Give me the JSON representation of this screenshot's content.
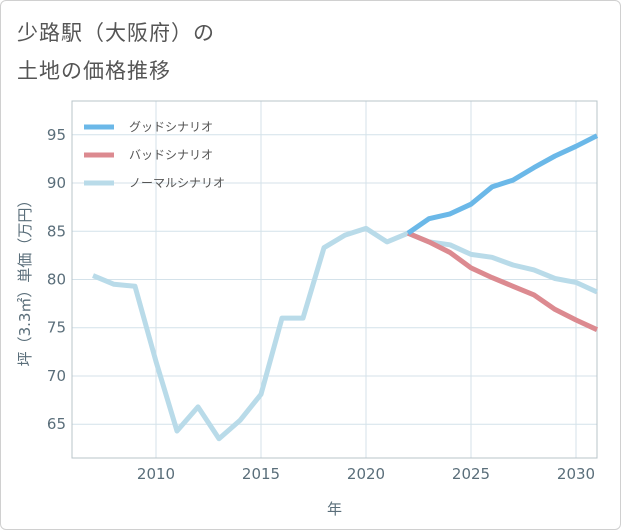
{
  "title": {
    "line1": "少路駅（大阪府）の",
    "line2": "土地の価格推移"
  },
  "chart_data": {
    "type": "line",
    "title": "少路駅（大阪府）の土地の価格推移",
    "xlabel": "年",
    "ylabel": "坪（3.3㎡）単価（万円）",
    "xlim": [
      2006,
      2031
    ],
    "ylim": [
      61.5,
      98.5
    ],
    "xticks": [
      2010,
      2015,
      2020,
      2025,
      2030
    ],
    "yticks": [
      65,
      70,
      75,
      80,
      85,
      90,
      95
    ],
    "grid": true,
    "legend_position": "top-left",
    "series": [
      {
        "name": "グッドシナリオ",
        "color": "#6bb8e8",
        "x": [
          2022,
          2023,
          2024,
          2025,
          2026,
          2027,
          2028,
          2029,
          2030,
          2031
        ],
        "values": [
          84.8,
          86.3,
          86.8,
          87.8,
          89.6,
          90.3,
          91.6,
          92.8,
          93.8,
          94.9
        ]
      },
      {
        "name": "バッドシナリオ",
        "color": "#dc8a90",
        "x": [
          2022,
          2023,
          2024,
          2025,
          2026,
          2027,
          2028,
          2029,
          2030,
          2031
        ],
        "values": [
          84.8,
          83.9,
          82.8,
          81.2,
          80.2,
          79.3,
          78.4,
          76.9,
          75.8,
          74.8
        ]
      },
      {
        "name": "ノーマルシナリオ",
        "color": "#b9dbe9",
        "x": [
          2007,
          2008,
          2009,
          2010,
          2011,
          2012,
          2013,
          2014,
          2015,
          2016,
          2017,
          2018,
          2019,
          2020,
          2021,
          2022,
          2023,
          2024,
          2025,
          2026,
          2027,
          2028,
          2029,
          2030,
          2031
        ],
        "values": [
          80.4,
          79.5,
          79.3,
          71.5,
          64.3,
          66.8,
          63.5,
          65.4,
          68.1,
          76.0,
          76.0,
          83.3,
          84.6,
          85.3,
          83.9,
          84.8,
          83.9,
          83.6,
          82.6,
          82.3,
          81.5,
          81.0,
          80.1,
          79.7,
          78.7
        ]
      }
    ]
  }
}
